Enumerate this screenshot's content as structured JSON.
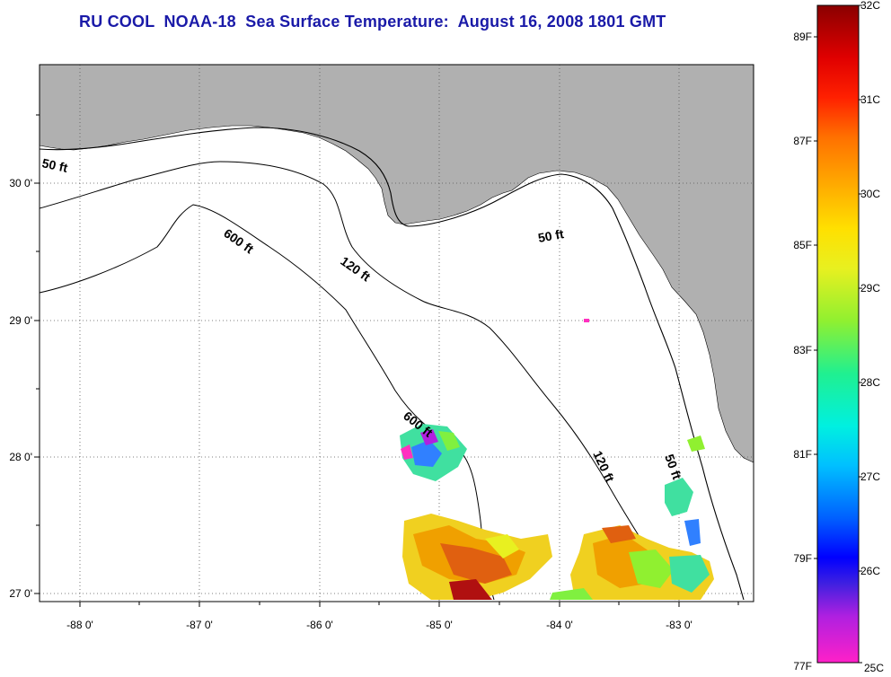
{
  "title": "RU COOL  NOAA-18  Sea Surface Temperature:  August 16, 2008 1801 GMT",
  "lon_labels": [
    "-88 0'",
    "-87 0'",
    "-86 0'",
    "-85 0'",
    "-84 0'",
    "-83 0'"
  ],
  "lat_labels": [
    "30 0'",
    "29 0'",
    "28 0'",
    "27 0'"
  ],
  "contour_labels": {
    "c50_west": "50 ft",
    "c600_north": "600 ft",
    "c120_north": "120 ft",
    "c50_east": "50 ft",
    "c600_south": "600 ft",
    "c120_south": "120 ft",
    "c50_south": "50 ft"
  },
  "colorbar": {
    "celsius": [
      "32C",
      "31C",
      "30C",
      "29C",
      "28C",
      "27C",
      "26C",
      "25C"
    ],
    "fahrenheit": [
      "89F",
      "87F",
      "85F",
      "83F",
      "81F",
      "79F",
      "77F"
    ]
  },
  "colors": {
    "land": "#b0b0b0",
    "title": "#1a1aa8",
    "warm": "#e06010",
    "hot": "#b01010"
  }
}
